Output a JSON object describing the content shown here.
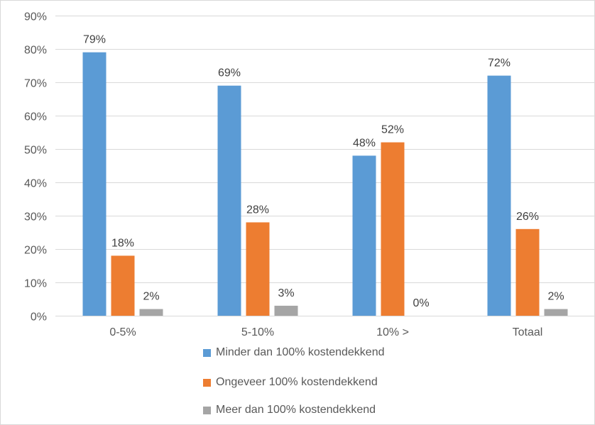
{
  "chart_data": {
    "type": "bar",
    "title": "",
    "xlabel": "",
    "ylabel": "",
    "ylim": [
      0,
      0.9
    ],
    "y_ticks": [
      "0%",
      "10%",
      "20%",
      "30%",
      "40%",
      "50%",
      "60%",
      "70%",
      "80%",
      "90%"
    ],
    "categories": [
      "0-5%",
      "5-10%",
      "10% >",
      "Totaal"
    ],
    "grid": true,
    "legend_position": "bottom",
    "series": [
      {
        "name": "Minder dan 100% kostendekkend",
        "color": "#5b9bd5",
        "values": [
          0.79,
          0.69,
          0.48,
          0.72
        ],
        "labels": [
          "79%",
          "69%",
          "48%",
          "72%"
        ]
      },
      {
        "name": "Ongeveer 100% kostendekkend",
        "color": "#ed7d31",
        "values": [
          0.18,
          0.28,
          0.52,
          0.26
        ],
        "labels": [
          "18%",
          "28%",
          "52%",
          "26%"
        ]
      },
      {
        "name": "Meer dan 100% kostendekkend",
        "color": "#a5a5a5",
        "values": [
          0.02,
          0.03,
          0.0,
          0.02
        ],
        "labels": [
          "2%",
          "3%",
          "0%",
          "2%"
        ]
      }
    ]
  }
}
